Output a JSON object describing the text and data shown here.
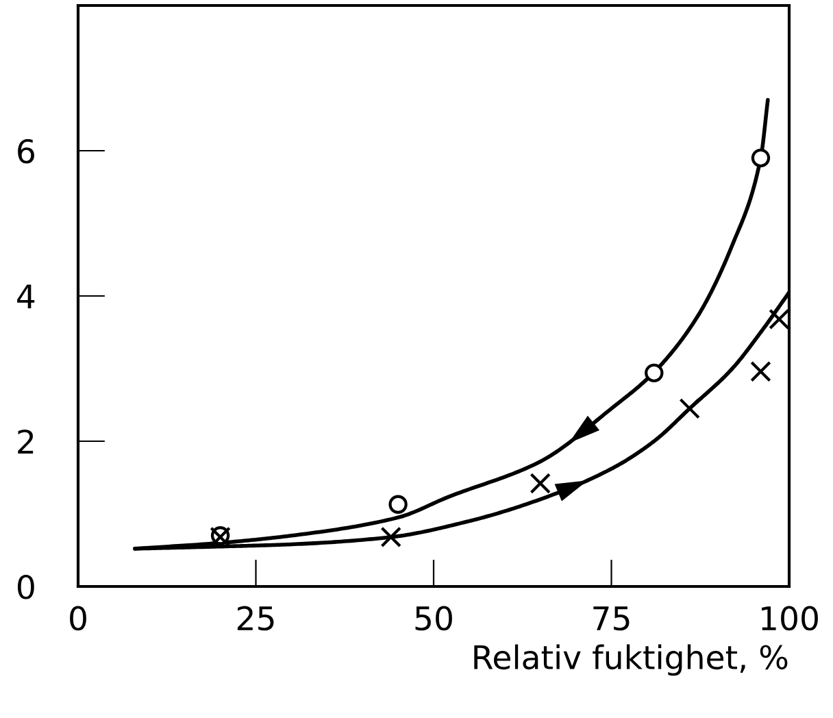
{
  "chart_data": {
    "type": "line",
    "xlabel": "Relativ fuktighet, %",
    "xlim": [
      0,
      100
    ],
    "xticks": [
      0,
      25,
      50,
      75,
      100
    ],
    "ylim": [
      0,
      8
    ],
    "yticks": [
      0,
      2,
      4,
      6
    ],
    "grid": false,
    "legend": false,
    "series": [
      {
        "color": "#000000",
        "marker": "none",
        "line_style": "solid",
        "x": [
          8,
          20,
          30,
          45,
          52,
          65,
          75,
          81,
          87,
          92,
          96,
          97
        ],
        "values": [
          0.52,
          0.6,
          0.7,
          0.95,
          1.23,
          1.72,
          2.45,
          2.95,
          3.7,
          4.7,
          5.9,
          6.7
        ]
      },
      {
        "color": "#000000",
        "marker": "none",
        "line_style": "solid",
        "x": [
          8,
          20,
          30,
          44,
          55,
          65,
          75,
          81,
          86,
          92,
          96,
          100
        ],
        "values": [
          0.52,
          0.55,
          0.58,
          0.68,
          0.9,
          1.2,
          1.62,
          2.0,
          2.45,
          3.0,
          3.5,
          4.05
        ]
      },
      {
        "type": "scatter",
        "color": "#000000",
        "marker": "circle",
        "x": [
          20,
          45,
          81,
          96
        ],
        "values": [
          0.7,
          1.13,
          2.94,
          5.9
        ]
      },
      {
        "type": "scatter",
        "color": "#000000",
        "marker": "cross",
        "x": [
          20,
          44,
          65,
          86,
          96,
          98.6
        ],
        "values": [
          0.68,
          0.68,
          1.42,
          2.45,
          2.96,
          3.68
        ]
      }
    ]
  }
}
